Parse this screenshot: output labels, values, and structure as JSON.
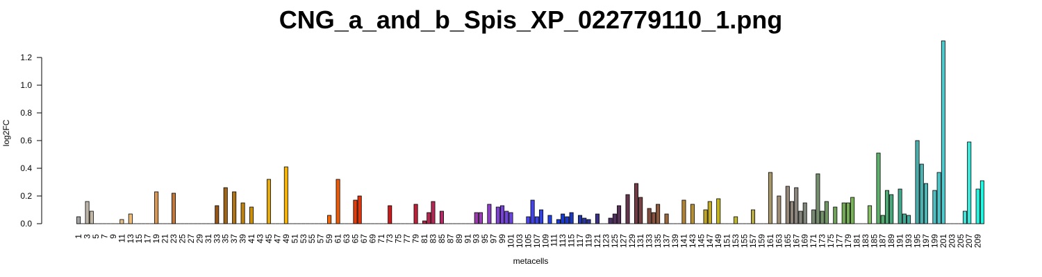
{
  "chart_data": {
    "type": "bar",
    "title": "CNG_a_and_b_Spis_XP_022779110_1.png",
    "xlabel": "metacells",
    "ylabel": "log2FC",
    "ylim": [
      0,
      1.3
    ],
    "yticks": [
      "0.0",
      "0.2",
      "0.4",
      "0.6",
      "0.8",
      "1.0",
      "1.2"
    ],
    "xtick_labels": [
      "1",
      "3",
      "5",
      "7",
      "9",
      "11",
      "13",
      "15",
      "17",
      "19",
      "21",
      "23",
      "25",
      "27",
      "29",
      "31",
      "33",
      "35",
      "37",
      "39",
      "41",
      "43",
      "45",
      "47",
      "49",
      "51",
      "53",
      "55",
      "57",
      "59",
      "61",
      "63",
      "65",
      "67",
      "69",
      "71",
      "73",
      "75",
      "77",
      "79",
      "81",
      "83",
      "85",
      "87",
      "89",
      "91",
      "93",
      "95",
      "97",
      "99",
      "101",
      "103",
      "105",
      "107",
      "109",
      "111",
      "113",
      "115",
      "117",
      "119",
      "121",
      "123",
      "125",
      "127",
      "129",
      "131",
      "133",
      "135",
      "137",
      "139",
      "141",
      "143",
      "145",
      "147",
      "149",
      "151",
      "153",
      "155",
      "157",
      "159",
      "161",
      "163",
      "165",
      "167",
      "169",
      "171",
      "173",
      "175",
      "177",
      "179",
      "181",
      "183",
      "185",
      "187",
      "189",
      "191",
      "193",
      "195",
      "197",
      "199",
      "201",
      "203",
      "205",
      "207",
      "209"
    ],
    "grid": false,
    "values": [
      0.05,
      0,
      0.16,
      0.09,
      0,
      0,
      0,
      0,
      0,
      0,
      0.03,
      0,
      0.07,
      0,
      0,
      0,
      0,
      0,
      0.23,
      0,
      0,
      0,
      0.22,
      0,
      0,
      0,
      0,
      0,
      0,
      0,
      0,
      0,
      0.13,
      0,
      0.26,
      0,
      0.23,
      0,
      0.15,
      0,
      0.12,
      0,
      0,
      0,
      0.32,
      0,
      0,
      0,
      0.41,
      0,
      0,
      0,
      0,
      0,
      0,
      0,
      0,
      0,
      0.06,
      0,
      0.32,
      0,
      0,
      0,
      0.17,
      0.2,
      0,
      0,
      0,
      0,
      0,
      0,
      0.13,
      0,
      0,
      0,
      0,
      0,
      0.14,
      0,
      0.02,
      0.08,
      0.16,
      0,
      0.09,
      0,
      0,
      0,
      0,
      0,
      0,
      0,
      0.08,
      0.08,
      0,
      0.14,
      0,
      0.12,
      0.13,
      0.09,
      0.08,
      0,
      0,
      0,
      0.05,
      0.17,
      0.05,
      0.1,
      0,
      0.06,
      0,
      0.03,
      0.07,
      0.05,
      0.08,
      0,
      0.06,
      0.04,
      0.03,
      0,
      0.07,
      0,
      0,
      0.04,
      0.07,
      0.13,
      0,
      0.21,
      0,
      0.29,
      0.19,
      0,
      0.11,
      0.08,
      0.14,
      0,
      0.07,
      0,
      0,
      0,
      0.17,
      0,
      0.14,
      0,
      0,
      0.1,
      0.16,
      0,
      0.18,
      0,
      0,
      0,
      0.05,
      0,
      0,
      0,
      0.1,
      0,
      0,
      0,
      0.37,
      0,
      0.2,
      0,
      0.27,
      0.16,
      0.26,
      0.09,
      0.15,
      0,
      0.1,
      0.36,
      0.09,
      0.16,
      0,
      0.12,
      0,
      0.15,
      0.15,
      0.19,
      0,
      0,
      0,
      0.13,
      0,
      0.51,
      0.06,
      0.24,
      0.21,
      0,
      0.25,
      0.07,
      0.06,
      0,
      0.6,
      0.43,
      0.29,
      0,
      0.24,
      0.37,
      1.32,
      0,
      0,
      0,
      0,
      0.09,
      0.59,
      0,
      0.25,
      0.31
    ],
    "colors": [
      "#a4a4a4",
      "#b5b0a8",
      "#bcb5a8",
      "#c2b7a5",
      "#c9b9a2",
      "#cfbb9f",
      "#d6bd9a",
      "#dcbf95",
      "#e0c090",
      "#e5c08b",
      "#e8bf86",
      "#ebbd80",
      "#ecbb7a",
      "#ecb773",
      "#ebb26c",
      "#e8ac66",
      "#e3a560",
      "#de9e5a",
      "#d99755",
      "#d29050",
      "#cc884a",
      "#c58145",
      "#bd793f",
      "#b6713a",
      "#ae6a34",
      "#a6622f",
      "#9e5a2b",
      "#985526",
      "#935023",
      "#904d20",
      "#8f4c1d",
      "#90501b",
      "#945619",
      "#995d17",
      "#9f6416",
      "#a66b14",
      "#ae7313",
      "#b57a12",
      "#bd8211",
      "#c48910",
      "#cc900f",
      "#d3980e",
      "#da9f0d",
      "#e1a50c",
      "#e7ab0b",
      "#edb00a",
      "#f1b40a",
      "#f4b50a",
      "#f6b40a",
      "#f7b00a",
      "#f8aa0a",
      "#f8a30a",
      "#f89c0a",
      "#f7940b",
      "#f68c0b",
      "#f5840b",
      "#f47b0b",
      "#f2730b",
      "#f06a0b",
      "#ee620b",
      "#ec5a0b",
      "#ea520b",
      "#e84a0b",
      "#e6430b",
      "#e33c0b",
      "#e1350b",
      "#de2f0c",
      "#db290c",
      "#d8240e",
      "#d52010",
      "#d21d13",
      "#cf1b16",
      "#cc1a1a",
      "#c9191e",
      "#c61a23",
      "#c31b28",
      "#c11c2d",
      "#be1e33",
      "#bc2039",
      "#ba2240",
      "#b82447",
      "#b6264e",
      "#b42856",
      "#b22a5e",
      "#b02c66",
      "#ae2e6e",
      "#ac3077",
      "#aa3280",
      "#a83489",
      "#a53692",
      "#a2389b",
      "#9f3aa4",
      "#9b3cad",
      "#973eb5",
      "#9240bd",
      "#8c41c4",
      "#8642cb",
      "#7f43d1",
      "#7844d7",
      "#7145dc",
      "#6a45e0",
      "#6245e3",
      "#5a45e6",
      "#5245e8",
      "#4a45e9",
      "#4244ea",
      "#3a43e9",
      "#3242e7",
      "#2b41e4",
      "#243fe0",
      "#1e3ddb",
      "#1a3cd5",
      "#1a3ace",
      "#1b39c6",
      "#1d38be",
      "#2037b5",
      "#2436ac",
      "#2934a2",
      "#2e3398",
      "#34328e",
      "#3a3184",
      "#40307a",
      "#462f71",
      "#4c2f68",
      "#523060",
      "#583159",
      "#5e3353",
      "#64364e",
      "#6a394a",
      "#703d46",
      "#764243",
      "#7c4741",
      "#824c3f",
      "#88523e",
      "#8e583d",
      "#945f3c",
      "#9a663b",
      "#9f6d3a",
      "#a47439",
      "#a97b38",
      "#ae8237",
      "#b28935",
      "#b69033",
      "#b99730",
      "#bc9e2d",
      "#bea42a",
      "#c0aa27",
      "#c1af25",
      "#c2b324",
      "#c2b624",
      "#c1b826",
      "#c0b92a",
      "#bfb82f",
      "#bdb635",
      "#bbb33c",
      "#b9b043",
      "#b6ab4b",
      "#b3a653",
      "#afa15b",
      "#ab9c62",
      "#a79769",
      "#a3926f",
      "#9f8e74",
      "#9a8b78",
      "#95887b",
      "#90867c",
      "#8b857d",
      "#86857c",
      "#81867a",
      "#7d8877",
      "#798b73",
      "#768f6f",
      "#74936a",
      "#729765",
      "#719c60",
      "#71a15c",
      "#72a658",
      "#73aa56",
      "#75ae55",
      "#78b256",
      "#7bb558",
      "#7fb85c",
      "#83ba62",
      "#87bc69",
      "#6fb569",
      "#5fb06b",
      "#54ad6f",
      "#4caa75",
      "#47a87c",
      "#44a784",
      "#43a78c",
      "#44a894",
      "#46aa9c",
      "#48aca3",
      "#4aafaa",
      "#4cb2b1",
      "#4db6b7",
      "#4ebabd",
      "#4fbfc2",
      "#4fc4c7",
      "#4fc9cb",
      "#4ecfcf",
      "#4cd4d2",
      "#49dad5",
      "#45dfd8",
      "#40e4da",
      "#3ae9dc",
      "#33eede",
      "#2bf2df",
      "#22f6e0",
      "#19f9e1",
      "#10fbe1",
      "#08fde1",
      "#03fee1"
    ]
  }
}
